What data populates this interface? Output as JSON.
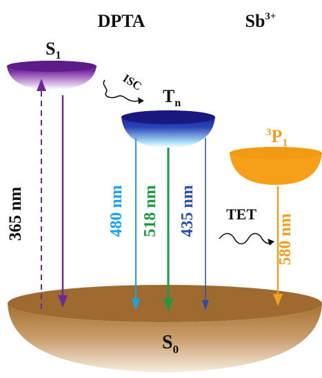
{
  "titles": {
    "left": "DPTA",
    "right": "Sb",
    "right_sup": "3+"
  },
  "levels": {
    "s1": {
      "main": "S",
      "sub": "1"
    },
    "tn": {
      "main": "T",
      "sub": "n"
    },
    "p1": {
      "sup": "3",
      "main": "P",
      "sub": "1"
    },
    "s0": {
      "main": "S",
      "sub": "0"
    }
  },
  "processes": {
    "isc": "ISC",
    "tet": "TET"
  },
  "transitions": {
    "excitation": "365 nm",
    "em_480": "480 nm",
    "em_518": "518 nm",
    "em_435": "435 nm",
    "em_580": "580 nm"
  },
  "colors": {
    "s1_top": "#6a1f8f",
    "s1_bottom": "#ffffff",
    "tn_top": "#1a1a8e",
    "tn_bottom": "#e6f6ff",
    "p1": "#f5a01a",
    "s0_top": "#b07a3a",
    "s0_bottom": "#f3e6d3",
    "excitation": "#6b2a9a",
    "em_480": "#1aa3e8",
    "em_518": "#1c9a3c",
    "em_435": "#2a4fb0",
    "em_580": "#f0a020",
    "text": "#111111"
  }
}
